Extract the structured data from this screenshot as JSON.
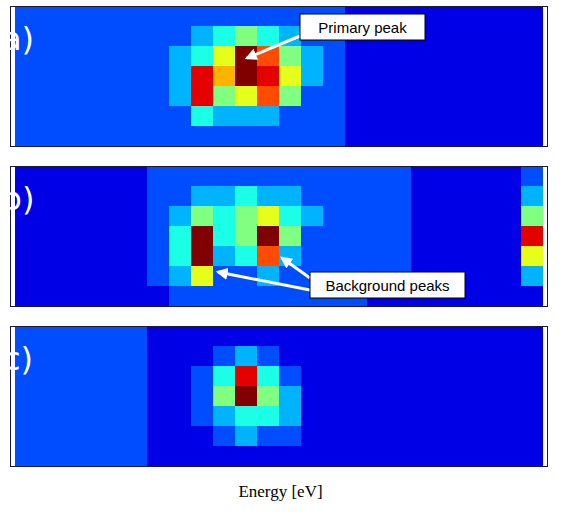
{
  "chart_data": [
    {
      "type": "heatmap",
      "label": "a)",
      "annotations": [
        "Primary peak"
      ],
      "tick_labels": false,
      "clim": [
        0,
        10
      ],
      "cells": [
        [
          2,
          2,
          2,
          2,
          2,
          2,
          2,
          2,
          2,
          2,
          2,
          2,
          2,
          2,
          2,
          1,
          1,
          1,
          1,
          1,
          1,
          1,
          1,
          1
        ],
        [
          2,
          2,
          2,
          2,
          2,
          2,
          2,
          2,
          3,
          4,
          5,
          4,
          3,
          2,
          2,
          1,
          1,
          1,
          1,
          1,
          1,
          1,
          1,
          1
        ],
        [
          2,
          2,
          2,
          2,
          2,
          2,
          2,
          3,
          4,
          6,
          10,
          8,
          5,
          3,
          2,
          1,
          1,
          1,
          1,
          1,
          1,
          1,
          1,
          1
        ],
        [
          2,
          2,
          2,
          2,
          2,
          2,
          2,
          3,
          9,
          7,
          10,
          9,
          6,
          3,
          2,
          1,
          1,
          1,
          1,
          1,
          1,
          1,
          1,
          1
        ],
        [
          2,
          2,
          2,
          2,
          2,
          2,
          2,
          3,
          9,
          5,
          6,
          8,
          5,
          2,
          2,
          1,
          1,
          1,
          1,
          1,
          1,
          1,
          1,
          1
        ],
        [
          2,
          2,
          2,
          2,
          2,
          2,
          2,
          2,
          4,
          3,
          3,
          3,
          2,
          2,
          2,
          1,
          1,
          1,
          1,
          1,
          1,
          1,
          1,
          1
        ],
        [
          2,
          2,
          2,
          2,
          2,
          2,
          2,
          2,
          2,
          2,
          2,
          2,
          2,
          2,
          2,
          1,
          1,
          1,
          1,
          1,
          1,
          1,
          1,
          1
        ]
      ]
    },
    {
      "type": "heatmap",
      "label": "b)",
      "annotations": [
        "Background peaks"
      ],
      "tick_labels": false,
      "clim": [
        0,
        10
      ],
      "cells": [
        [
          1,
          1,
          1,
          1,
          1,
          1,
          2,
          2,
          2,
          2,
          2,
          2,
          2,
          2,
          2,
          2,
          2,
          2,
          1,
          1,
          1,
          1,
          1,
          2
        ],
        [
          1,
          1,
          1,
          1,
          1,
          1,
          2,
          2,
          3,
          3,
          4,
          3,
          3,
          2,
          2,
          2,
          2,
          2,
          1,
          1,
          1,
          1,
          1,
          3
        ],
        [
          1,
          1,
          1,
          1,
          1,
          1,
          2,
          3,
          5,
          4,
          5,
          6,
          4,
          3,
          2,
          2,
          2,
          2,
          1,
          1,
          1,
          1,
          1,
          5
        ],
        [
          1,
          1,
          1,
          1,
          1,
          1,
          2,
          4,
          10,
          4,
          5,
          10,
          5,
          2,
          2,
          2,
          2,
          2,
          1,
          1,
          1,
          1,
          1,
          9
        ],
        [
          1,
          1,
          1,
          1,
          1,
          1,
          2,
          4,
          10,
          3,
          4,
          8,
          3,
          2,
          2,
          2,
          2,
          2,
          1,
          1,
          1,
          1,
          1,
          6
        ],
        [
          1,
          1,
          1,
          1,
          1,
          1,
          2,
          3,
          6,
          2,
          2,
          3,
          2,
          2,
          2,
          2,
          2,
          2,
          1,
          1,
          1,
          1,
          1,
          3
        ],
        [
          1,
          1,
          1,
          1,
          1,
          1,
          1,
          2,
          2,
          2,
          2,
          2,
          2,
          2,
          2,
          2,
          1,
          1,
          1,
          1,
          1,
          1,
          1,
          1
        ]
      ]
    },
    {
      "type": "heatmap",
      "label": "c)",
      "annotations": [],
      "tick_labels": false,
      "clim": [
        0,
        10
      ],
      "xlabel": "Energy [eV]",
      "cells": [
        [
          2,
          2,
          2,
          2,
          2,
          2,
          1,
          1,
          1,
          1,
          1,
          1,
          1,
          1,
          1,
          1,
          1,
          1,
          1,
          1,
          1,
          1,
          1,
          1
        ],
        [
          2,
          2,
          2,
          2,
          2,
          2,
          1,
          1,
          1,
          2,
          3,
          2,
          1,
          1,
          1,
          1,
          1,
          1,
          1,
          1,
          1,
          1,
          1,
          1
        ],
        [
          2,
          2,
          2,
          2,
          2,
          2,
          1,
          1,
          2,
          4,
          9,
          4,
          2,
          1,
          1,
          1,
          1,
          1,
          1,
          1,
          1,
          1,
          1,
          1
        ],
        [
          2,
          2,
          2,
          2,
          2,
          2,
          1,
          1,
          2,
          5,
          10,
          5,
          3,
          1,
          1,
          1,
          1,
          1,
          1,
          1,
          1,
          1,
          1,
          1
        ],
        [
          2,
          2,
          2,
          2,
          2,
          2,
          1,
          1,
          2,
          3,
          4,
          4,
          3,
          1,
          1,
          1,
          1,
          1,
          1,
          1,
          1,
          1,
          1,
          1
        ],
        [
          2,
          2,
          2,
          2,
          2,
          2,
          1,
          1,
          1,
          2,
          3,
          2,
          2,
          1,
          1,
          1,
          1,
          1,
          1,
          1,
          1,
          1,
          1,
          1
        ],
        [
          2,
          2,
          2,
          2,
          2,
          2,
          1,
          1,
          1,
          1,
          1,
          1,
          1,
          1,
          1,
          1,
          1,
          1,
          1,
          1,
          1,
          1,
          1,
          1
        ]
      ]
    }
  ]
}
